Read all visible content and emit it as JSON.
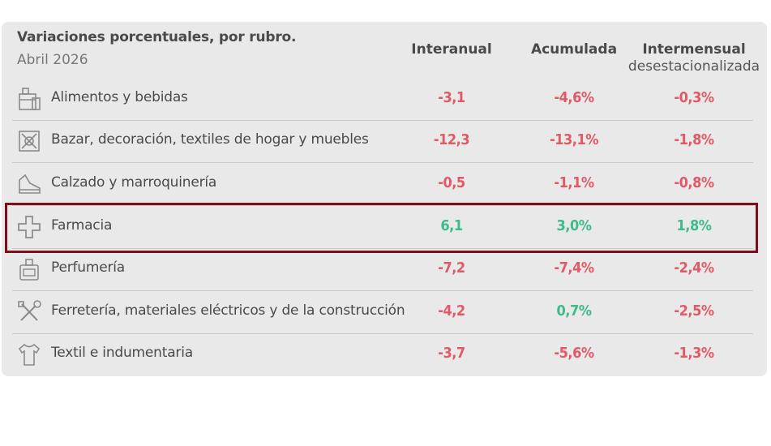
{
  "header": {
    "title": "Variaciones porcentuales, por rubro.",
    "subtitle": "Abril 2026"
  },
  "columns": [
    {
      "label": "Interanual",
      "sublabel": ""
    },
    {
      "label": "Acumulada",
      "sublabel": ""
    },
    {
      "label": "Intermensual",
      "sublabel": "desestacionalizada"
    }
  ],
  "colors": {
    "negative": "#e05a66",
    "positive": "#3dbb8a",
    "highlight": "#7a0f1d"
  },
  "chart_data": {
    "type": "table",
    "title": "Variaciones porcentuales, por rubro.",
    "subtitle": "Abril 2026",
    "columns": [
      "Interanual",
      "Acumulada",
      "Intermensual desestacionalizada"
    ],
    "rows": [
      {
        "icon": "grocery-icon",
        "label": "Alimentos y bebidas",
        "interanual": "-3,1",
        "acumulada": "-4,6%",
        "intermensual": "-0,3%"
      },
      {
        "icon": "home-goods-icon",
        "label": "Bazar, decoración, textiles de hogar y muebles",
        "interanual": "-12,3",
        "acumulada": "-13,1%",
        "intermensual": "-1,8%"
      },
      {
        "icon": "shoe-icon",
        "label": "Calzado y marroquinería",
        "interanual": "-0,5",
        "acumulada": "-1,1%",
        "intermensual": "-0,8%"
      },
      {
        "icon": "pharmacy-cross-icon",
        "label": "Farmacia",
        "interanual": "6,1",
        "acumulada": "3,0%",
        "intermensual": "1,8%",
        "highlighted": true
      },
      {
        "icon": "perfume-icon",
        "label": "Perfumería",
        "interanual": "-7,2",
        "acumulada": "-7,4%",
        "intermensual": "-2,4%"
      },
      {
        "icon": "tools-icon",
        "label": "Ferretería, materiales eléctricos y de la construcción",
        "interanual": "-4,2",
        "acumulada": "0,7%",
        "intermensual": "-2,5%"
      },
      {
        "icon": "tshirt-icon",
        "label": "Textil e indumentaria",
        "interanual": "-3,7",
        "acumulada": "-5,6%",
        "intermensual": "-1,3%"
      }
    ]
  }
}
